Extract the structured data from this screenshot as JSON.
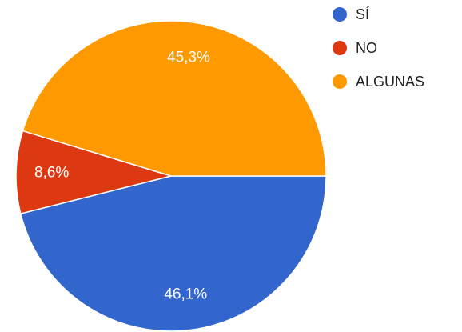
{
  "chart_data": {
    "type": "pie",
    "categories": [
      "SÍ",
      "NO",
      "ALGUNAS"
    ],
    "values": [
      46.1,
      8.6,
      45.3
    ],
    "value_labels": [
      "46,1%",
      "8,6%",
      "45,3%"
    ],
    "colors": [
      "#3366cc",
      "#dc3912",
      "#ff9900"
    ],
    "legend": "right"
  }
}
